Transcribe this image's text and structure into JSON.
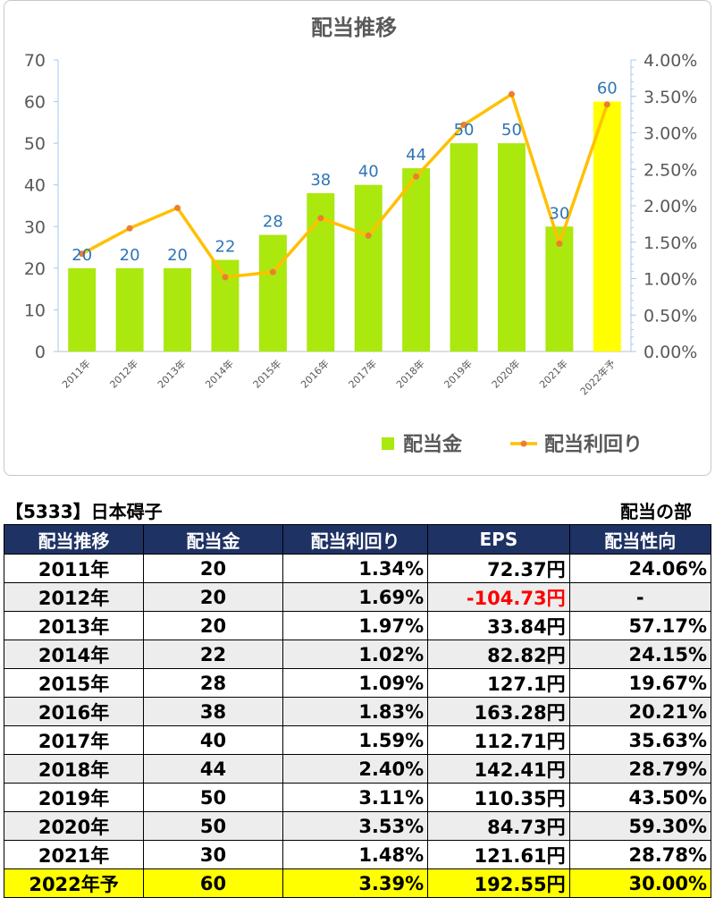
{
  "chart_data": {
    "type": "bar",
    "title": "配当推移",
    "categories": [
      "2011年",
      "2012年",
      "2013年",
      "2014年",
      "2015年",
      "2016年",
      "2017年",
      "2018年",
      "2019年",
      "2020年",
      "2021年",
      "2022年予"
    ],
    "series": [
      {
        "name": "配当金",
        "type": "bar",
        "axis": "left",
        "values": [
          20,
          20,
          20,
          22,
          28,
          38,
          40,
          44,
          50,
          50,
          30,
          60
        ],
        "color": "#aae80e",
        "highlight_color": "#ffff00",
        "highlight_index": 11
      },
      {
        "name": "配当利回り",
        "type": "line",
        "axis": "right",
        "values": [
          1.34,
          1.69,
          1.97,
          1.02,
          1.09,
          1.83,
          1.59,
          2.4,
          3.11,
          3.53,
          1.48,
          3.39
        ],
        "color": "#ffc000",
        "marker_color": "#ed7d31"
      }
    ],
    "left_axis": {
      "ylim": [
        0,
        70
      ],
      "ticks": [
        "0",
        "10",
        "20",
        "30",
        "40",
        "50",
        "60",
        "70"
      ]
    },
    "right_axis": {
      "ylim": [
        0,
        4
      ],
      "ticks": [
        "0.00%",
        "0.50%",
        "1.00%",
        "1.50%",
        "2.00%",
        "2.50%",
        "3.00%",
        "3.50%",
        "4.00%"
      ]
    },
    "data_labels": [
      "20",
      "20",
      "20",
      "22",
      "28",
      "38",
      "40",
      "44",
      "50",
      "50",
      "30",
      "60"
    ],
    "data_label_color": "#2e75b6",
    "legend_position": "bottom-right",
    "grid": false
  },
  "table": {
    "company": "【5333】日本碍子",
    "section": "配当の部",
    "headers": [
      "配当推移",
      "配当金",
      "配当利回り",
      "EPS",
      "配当性向"
    ],
    "rows": [
      [
        "2011年",
        "20",
        "1.34%",
        "72.37円",
        "24.06%"
      ],
      [
        "2012年",
        "20",
        "1.69%",
        "-104.73円",
        "-"
      ],
      [
        "2013年",
        "20",
        "1.97%",
        "33.84円",
        "57.17%"
      ],
      [
        "2014年",
        "22",
        "1.02%",
        "82.82円",
        "24.15%"
      ],
      [
        "2015年",
        "28",
        "1.09%",
        "127.1円",
        "19.67%"
      ],
      [
        "2016年",
        "38",
        "1.83%",
        "163.28円",
        "20.21%"
      ],
      [
        "2017年",
        "40",
        "1.59%",
        "112.71円",
        "35.63%"
      ],
      [
        "2018年",
        "44",
        "2.40%",
        "142.41円",
        "28.79%"
      ],
      [
        "2019年",
        "50",
        "3.11%",
        "110.35円",
        "43.50%"
      ],
      [
        "2020年",
        "50",
        "3.53%",
        "84.73円",
        "59.30%"
      ],
      [
        "2021年",
        "30",
        "1.48%",
        "121.61円",
        "28.78%"
      ],
      [
        "2022年予",
        "60",
        "3.39%",
        "192.55円",
        "30.00%"
      ]
    ],
    "negative_color": "#ff0000",
    "header_bg": "#1f3264",
    "forecast_bg": "#ffff00"
  }
}
